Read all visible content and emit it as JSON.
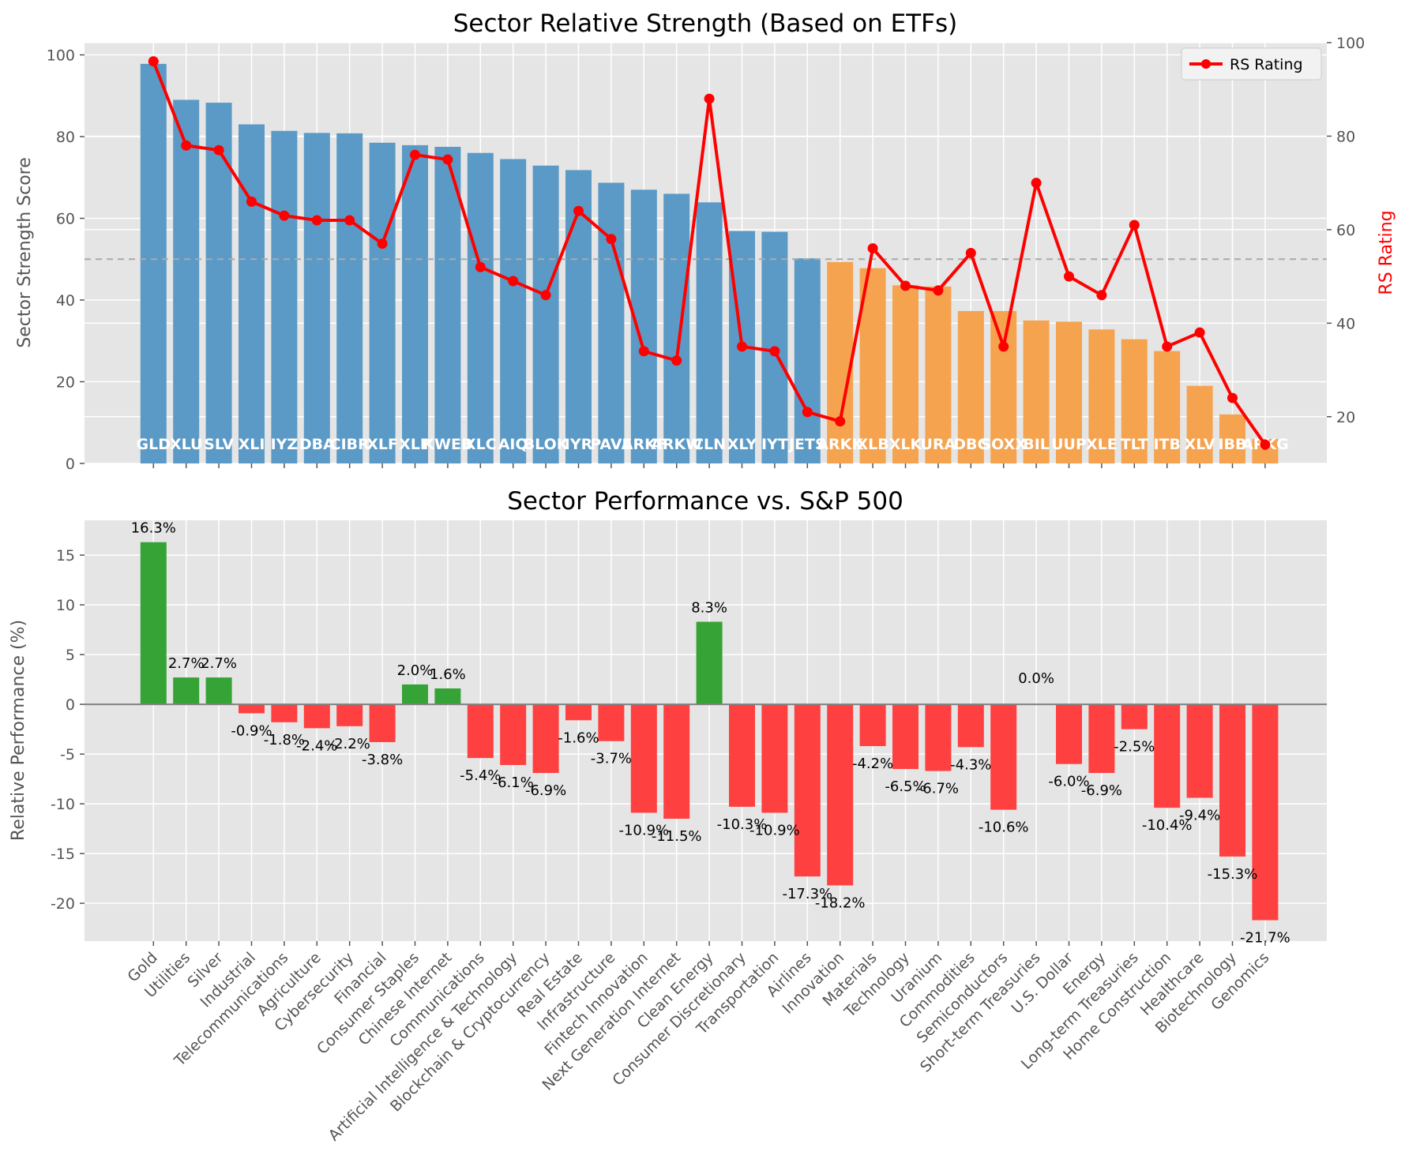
{
  "chart_data": [
    {
      "type": "bar",
      "title": "Sector Relative Strength (Based on ETFs)",
      "ylabel": "Sector Strength Score",
      "y2label": "RS Rating",
      "ylim": [
        0,
        103
      ],
      "y2lim": [
        10,
        100
      ],
      "yticks": [
        0,
        20,
        40,
        60,
        80,
        100
      ],
      "y2ticks": [
        20,
        40,
        60,
        80,
        100
      ],
      "threshold": 50,
      "grid": true,
      "legend": {
        "placement": "top-right",
        "entries": [
          "RS Rating"
        ]
      },
      "colors": {
        "strong": "#5b9ac6",
        "weak": "#f5a34f",
        "line": "#ff0000",
        "threshold": "#aaaaaa",
        "panel": "#e5e5e5"
      },
      "tickers": [
        "GLD",
        "XLU",
        "SLV",
        "XLI",
        "IYZ",
        "DBA",
        "CIBR",
        "XLF",
        "XLP",
        "KWEB",
        "XLC",
        "AIQ",
        "BLOK",
        "IYR",
        "PAVE",
        "ARKF",
        "ARKW",
        "CLN",
        "XLY",
        "IYT",
        "JETS",
        "ARKK",
        "XLB",
        "XLK",
        "URA",
        "DBC",
        "SOXX",
        "BIL",
        "UUP",
        "XLE",
        "TLT",
        "ITB",
        "XLV",
        "IBB",
        "ARKG"
      ],
      "values": [
        97.8,
        89,
        88.3,
        83,
        81.4,
        80.9,
        80.8,
        78.5,
        77.9,
        77.5,
        76,
        74.5,
        72.9,
        71.8,
        68.7,
        67,
        66,
        63.9,
        56.9,
        56.7,
        50.2,
        49.3,
        47.8,
        43.6,
        43.3,
        37.3,
        37.3,
        35,
        34.7,
        32.8,
        30.4,
        27.5,
        19,
        12,
        6
      ],
      "series": [
        {
          "name": "RS Rating",
          "values": [
            96,
            78,
            77,
            66,
            63,
            62,
            62,
            57,
            76,
            75,
            52,
            49,
            46,
            64,
            58,
            34,
            32,
            88,
            35,
            34,
            21,
            19,
            56,
            48,
            47,
            55,
            35,
            70,
            50,
            46,
            61,
            35,
            38,
            24,
            14
          ]
        }
      ]
    },
    {
      "type": "bar",
      "title": "Sector Performance vs. S&P 500",
      "ylabel": "Relative Performance (%)",
      "ylim": [
        -23.8,
        18.5
      ],
      "yticks": [
        -20,
        -15,
        -10,
        -5,
        0,
        5,
        10,
        15
      ],
      "grid": true,
      "colors": {
        "positive": "#36a336",
        "negative": "#ff4040",
        "zero_line": "#808080",
        "panel": "#e5e5e5"
      },
      "categories": [
        "Gold",
        "Utilities",
        "Silver",
        "Industrial",
        "Telecommunications",
        "Agriculture",
        "Cybersecurity",
        "Financial",
        "Consumer Staples",
        "Chinese Internet",
        "Communications",
        "Artificial Intelligence & Technology",
        "Blockchain & Cryptocurrency",
        "Real Estate",
        "Infrastructure",
        "Fintech Innovation",
        "Next Generation Internet",
        "Clean Energy",
        "Consumer Discretionary",
        "Transportation",
        "Airlines",
        "Innovation",
        "Materials",
        "Technology",
        "Uranium",
        "Commodities",
        "Semiconductors",
        "Short-term Treasuries",
        "U.S. Dollar",
        "Energy",
        "Long-term Treasuries",
        "Home Construction",
        "Healthcare",
        "Biotechnology",
        "Genomics"
      ],
      "values": [
        16.3,
        2.7,
        2.7,
        -0.9,
        -1.8,
        -2.4,
        -2.2,
        -3.8,
        2.0,
        1.6,
        -5.4,
        -6.1,
        -6.9,
        -1.6,
        -3.7,
        -10.9,
        -11.5,
        8.3,
        -10.3,
        -10.9,
        -17.3,
        -18.2,
        -4.2,
        -6.5,
        -6.7,
        -4.3,
        -10.6,
        0.0,
        -6.0,
        -6.9,
        -2.5,
        -10.4,
        -9.4,
        -15.3,
        -21.7
      ],
      "labels": [
        "16.3%",
        "2.7%",
        "2.7%",
        "-0.9%",
        "-1.8%",
        "-2.4%",
        "-2.2%",
        "-3.8%",
        "2.0%",
        "1.6%",
        "-5.4%",
        "-6.1%",
        "-6.9%",
        "-1.6%",
        "-3.7%",
        "-10.9%",
        "-11.5%",
        "8.3%",
        "-10.3%",
        "-10.9%",
        "-17.3%",
        "-18.2%",
        "-4.2%",
        "-6.5%",
        "-6.7%",
        "-4.3%",
        "-10.6%",
        "0.0%",
        "-6.0%",
        "-6.9%",
        "-2.5%",
        "-10.4%",
        "-9.4%",
        "-15.3%",
        "-21.7%"
      ]
    }
  ]
}
